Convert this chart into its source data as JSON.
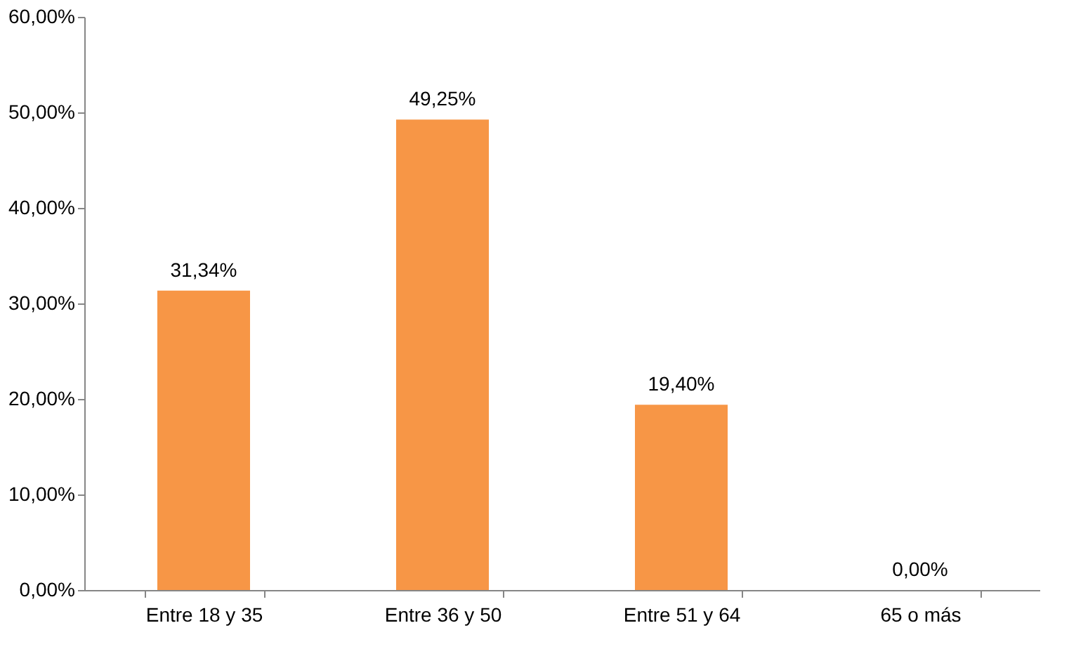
{
  "chart_data": {
    "type": "bar",
    "categories": [
      "Entre 18 y 35",
      "Entre 36 y 50",
      "Entre 51 y 64",
      "65 o más"
    ],
    "values": [
      31.34,
      49.25,
      19.4,
      0
    ],
    "value_labels": [
      "31,34%",
      "49,25%",
      "19,40%",
      "0,00%"
    ],
    "color": "#f79646",
    "ylim": [
      0,
      60
    ],
    "yticks": [
      {
        "value": 0,
        "label": "0,00%"
      },
      {
        "value": 10,
        "label": "10,00%"
      },
      {
        "value": 20,
        "label": "20,00%"
      },
      {
        "value": 30,
        "label": "30,00%"
      },
      {
        "value": 40,
        "label": "40,00%"
      },
      {
        "value": 50,
        "label": "50,00%"
      },
      {
        "value": 60,
        "label": "60,00%"
      }
    ],
    "grid": false
  }
}
